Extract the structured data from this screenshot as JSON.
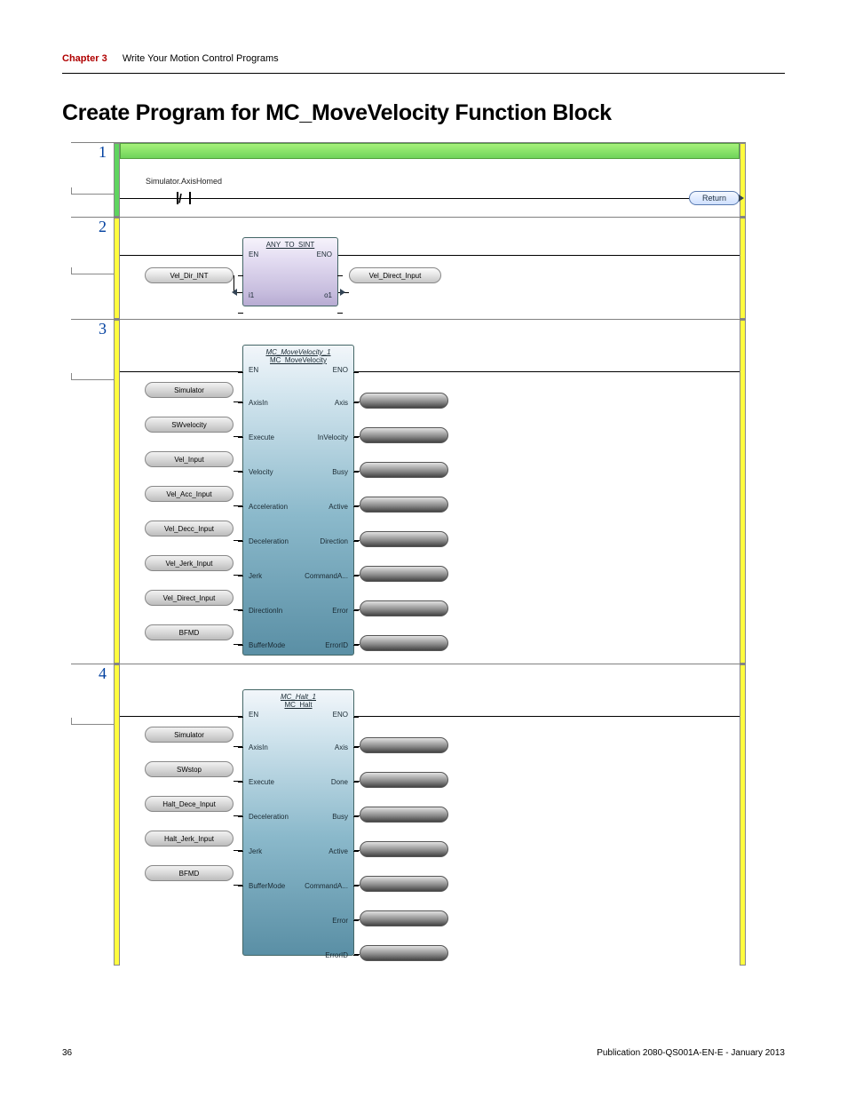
{
  "header": {
    "chapter": "Chapter 3",
    "subtitle": "Write Your Motion Control Programs"
  },
  "title": "Create Program for MC_MoveVelocity Function Block",
  "rungs": {
    "r1": {
      "num": "1",
      "contact_label": "Simulator.AxisHomed",
      "return_label": "Return"
    },
    "r2": {
      "num": "2",
      "fb_title": "ANY_TO_SINT",
      "en": "EN",
      "eno": "ENO",
      "i1_label": "i1",
      "o1_label": "o1",
      "in_var": "Vel_Dir_INT",
      "out_var": "Vel_Direct_Input"
    },
    "r3": {
      "num": "3",
      "fb_title": "MC_MoveVelocity_1",
      "fb_sub": "MC_MoveVelocity",
      "en": "EN",
      "eno": "ENO",
      "left_pins": [
        "AxisIn",
        "Execute",
        "Velocity",
        "Acceleration",
        "Deceleration",
        "Jerk",
        "DirectionIn",
        "BufferMode"
      ],
      "right_pins": [
        "Axis",
        "InVelocity",
        "Busy",
        "Active",
        "Direction",
        "CommandA...",
        "Error",
        "ErrorID"
      ],
      "in_vars": [
        "Simulator",
        "SWvelocity",
        "Vel_Input",
        "Vel_Acc_Input",
        "Vel_Decc_Input",
        "Vel_Jerk_Input",
        "Vel_Direct_Input",
        "BFMD"
      ]
    },
    "r4": {
      "num": "4",
      "fb_title": "MC_Halt_1",
      "fb_sub": "MC_Halt",
      "en": "EN",
      "eno": "ENO",
      "left_pins": [
        "AxisIn",
        "Execute",
        "Deceleration",
        "Jerk",
        "BufferMode"
      ],
      "right_pins": [
        "Axis",
        "Done",
        "Busy",
        "Active",
        "CommandA...",
        "Error",
        "ErrorID"
      ],
      "in_vars": [
        "Simulator",
        "SWstop",
        "Halt_Dece_Input",
        "Halt_Jerk_Input",
        "BFMD"
      ]
    }
  },
  "footer": {
    "page": "36",
    "pub": "Publication 2080-QS001A-EN-E - January 2013"
  },
  "colors": {
    "rail_yellow": "#fffc3e",
    "rail_green": "#5fd45f",
    "fb_gradient_top": "#f2f6fa",
    "fb_gradient_bot": "#5a8fa5"
  }
}
